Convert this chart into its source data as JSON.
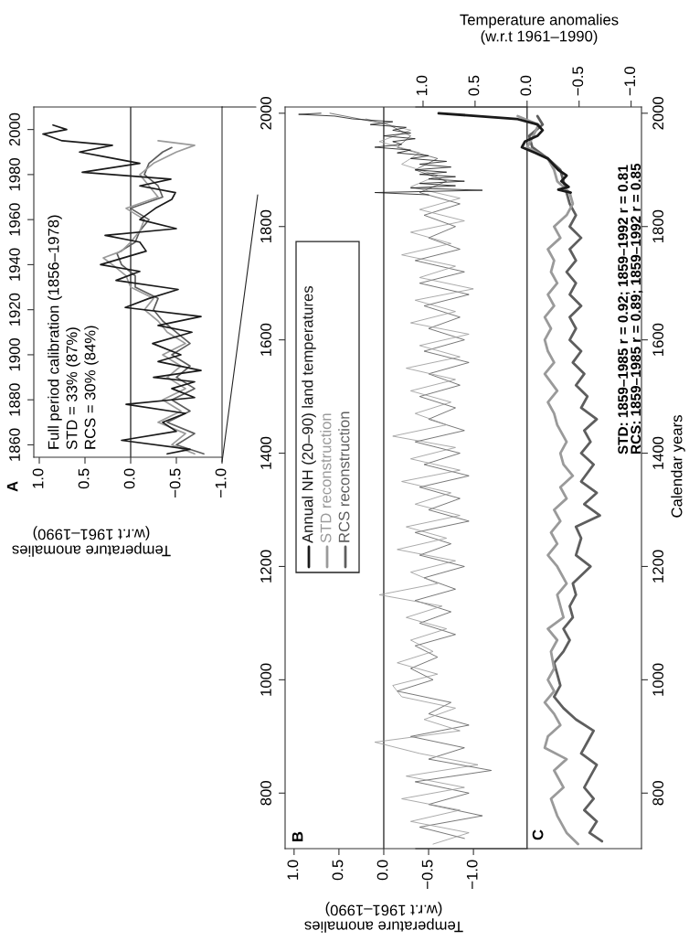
{
  "chart_data": [
    {
      "type": "line",
      "title": "A",
      "xlabel": "Temperature anomalies\n(w.r.t 1961–1990)",
      "orientation": "horizontal",
      "ylim": [
        1854.5,
        2010
      ],
      "yticks": [
        1860,
        1880,
        1900,
        1920,
        1940,
        1960,
        1980,
        2000
      ],
      "xlim": [
        1.06,
        -1.0
      ],
      "xticks": [
        {
          "value": 1.0,
          "label": "1.0"
        },
        {
          "value": 0.5,
          "label": "0.5"
        },
        {
          "value": 0.0,
          "label": "0.0"
        },
        {
          "value": -0.5,
          "label": "−0.5"
        },
        {
          "value": -1.0,
          "label": "−1.0"
        }
      ],
      "ref_lines": [
        {
          "axis": "x",
          "value": 0,
          "color": "#333333"
        }
      ],
      "annotations": [
        "Full period calibration (1856–1978)",
        "STD = 33% (87%)",
        "RCS = 30% (84%)"
      ],
      "series": [
        {
          "color": "#1a1a1a",
          "x": [
            1856,
            1858,
            1862,
            1866,
            1870,
            1874,
            1878,
            1881,
            1885,
            1888,
            1890,
            1893,
            1897,
            1900,
            1905,
            1910,
            1913,
            1917,
            1921,
            1925,
            1929,
            1933,
            1937,
            1940,
            1946,
            1950,
            1953,
            1956,
            1960,
            1965,
            1969,
            1972,
            1975,
            1978,
            1981,
            1985,
            1988,
            1990,
            1993,
            1995,
            1998,
            2000,
            2002
          ],
          "values": [
            -0.4,
            -0.65,
            0.1,
            -0.5,
            -0.35,
            -0.6,
            0.05,
            -0.7,
            -0.45,
            -0.7,
            -0.25,
            -0.77,
            -0.3,
            -0.55,
            -0.24,
            -0.67,
            -0.3,
            -0.77,
            0.06,
            -0.2,
            -0.52,
            0.16,
            -0.1,
            0.33,
            -0.17,
            -0.1,
            0.28,
            -0.5,
            -0.1,
            -0.27,
            -0.45,
            -0.49,
            -0.1,
            -0.44,
            0.53,
            -0.1,
            0.3,
            0.56,
            0.2,
            0.75,
            0.96,
            0.7,
            0.85
          ]
        },
        {
          "color": "#9a9a9a",
          "x": [
            1856,
            1860,
            1865,
            1870,
            1875,
            1880,
            1885,
            1890,
            1895,
            1900,
            1905,
            1910,
            1915,
            1920,
            1925,
            1930,
            1935,
            1940,
            1943,
            1946,
            1950,
            1955,
            1960,
            1965,
            1970,
            1975,
            1980,
            1985,
            1990,
            1993,
            1995
          ],
          "values": [
            -0.7,
            -0.45,
            -0.6,
            -0.3,
            -0.55,
            -0.35,
            -0.6,
            -0.4,
            -0.55,
            -0.35,
            -0.6,
            -0.4,
            -0.3,
            -0.15,
            -0.25,
            0.0,
            0.05,
            0.2,
            0.3,
            0.1,
            0.0,
            -0.1,
            -0.15,
            0.05,
            -0.3,
            -0.2,
            -0.1,
            -0.25,
            -0.5,
            -0.7,
            -0.3
          ]
        },
        {
          "color": "#5e5e5e",
          "x": [
            1856,
            1860,
            1865,
            1870,
            1875,
            1880,
            1885,
            1890,
            1895,
            1900,
            1905,
            1910,
            1915,
            1920,
            1925,
            1930,
            1935,
            1940,
            1945,
            1950,
            1955,
            1960,
            1965,
            1970,
            1975,
            1980,
            1985,
            1990,
            1992
          ],
          "values": [
            -0.8,
            -0.5,
            -0.7,
            -0.4,
            -0.65,
            -0.45,
            -0.7,
            -0.5,
            -0.65,
            -0.45,
            -0.65,
            -0.5,
            -0.35,
            -0.25,
            -0.3,
            -0.05,
            -0.05,
            0.1,
            0.15,
            -0.05,
            -0.1,
            -0.2,
            0.0,
            -0.35,
            -0.3,
            -0.15,
            -0.2,
            -0.35,
            -0.45
          ]
        }
      ]
    },
    {
      "type": "line",
      "title": "B",
      "xlabel": "Temperature anomalies\n(w.r.t 1961–1990)",
      "orientation": "horizontal",
      "ylim": [
        702,
        2011
      ],
      "yticks": [
        800,
        1000,
        1200,
        1400,
        1600,
        1800,
        2000
      ],
      "xlim": [
        1.1,
        -1.6
      ],
      "xticks": [
        {
          "value": 1.0,
          "label": "1.0"
        },
        {
          "value": 0.5,
          "label": "0.5"
        },
        {
          "value": 0.0,
          "label": "0.0"
        },
        {
          "value": -0.5,
          "label": "−0.5"
        },
        {
          "value": -1.0,
          "label": "−1.0"
        }
      ],
      "ref_lines": [
        {
          "axis": "x",
          "value": 0,
          "color": "#333333"
        }
      ],
      "legend": "top",
      "series": [
        {
          "name": "Annual NH (20–90) land temperatures",
          "color": "#1a1a1a",
          "x": [
            1856,
            1860,
            1864,
            1868,
            1872,
            1876,
            1880,
            1884,
            1888,
            1892,
            1896,
            1900,
            1905,
            1910,
            1915,
            1920,
            1925,
            1930,
            1935,
            1940,
            1945,
            1950,
            1955,
            1960,
            1965,
            1970,
            1975,
            1980,
            1985,
            1990,
            1995,
            1998,
            2000
          ],
          "values": [
            -0.5,
            0.1,
            -1.1,
            -0.3,
            -0.8,
            -0.4,
            -0.9,
            -0.5,
            -0.8,
            -0.4,
            -0.7,
            -0.35,
            -0.75,
            -0.4,
            -0.7,
            -0.3,
            -0.5,
            -0.15,
            -0.3,
            0.1,
            -0.2,
            -0.1,
            -0.35,
            0.0,
            -0.3,
            -0.1,
            -0.25,
            0.15,
            -0.1,
            0.35,
            0.55,
            0.95,
            0.7
          ]
        },
        {
          "name": "STD reconstruction",
          "color": "#9a9a9a",
          "x": [
            710,
            730,
            750,
            770,
            790,
            810,
            830,
            850,
            870,
            890,
            910,
            930,
            950,
            970,
            990,
            1010,
            1030,
            1050,
            1070,
            1090,
            1110,
            1130,
            1150,
            1170,
            1190,
            1210,
            1230,
            1250,
            1270,
            1290,
            1310,
            1330,
            1350,
            1370,
            1390,
            1410,
            1430,
            1450,
            1470,
            1490,
            1510,
            1530,
            1550,
            1570,
            1590,
            1610,
            1630,
            1650,
            1670,
            1690,
            1710,
            1730,
            1750,
            1770,
            1790,
            1810,
            1830,
            1850,
            1870,
            1890,
            1910,
            1930,
            1950,
            1970,
            1990
          ],
          "values": [
            -0.55,
            -0.95,
            -0.3,
            -0.85,
            -0.2,
            -0.9,
            -0.25,
            -1.05,
            -0.4,
            0.1,
            -0.85,
            -0.45,
            -0.8,
            -0.2,
            -0.1,
            -0.6,
            -0.15,
            -0.55,
            -0.3,
            -0.7,
            -0.25,
            -0.65,
            0.05,
            -0.6,
            -0.3,
            -0.8,
            -0.15,
            -0.7,
            -0.25,
            -0.85,
            -0.35,
            -0.75,
            -0.2,
            -0.85,
            -0.3,
            -0.8,
            -0.1,
            -0.7,
            -0.35,
            -0.75,
            -0.3,
            -0.8,
            -0.25,
            -0.85,
            -0.4,
            -0.95,
            -0.3,
            -0.8,
            -0.35,
            -1.0,
            -0.4,
            -0.8,
            -0.2,
            -0.75,
            -0.3,
            -0.9,
            -0.4,
            -0.85,
            -0.3,
            -0.6,
            -0.2,
            -0.4,
            0.05,
            -0.3,
            0.2
          ]
        },
        {
          "name": "RCS reconstruction",
          "color": "#5e5e5e",
          "x": [
            720,
            740,
            760,
            780,
            800,
            820,
            840,
            860,
            880,
            900,
            920,
            940,
            960,
            980,
            1000,
            1020,
            1040,
            1060,
            1080,
            1100,
            1120,
            1140,
            1160,
            1180,
            1200,
            1220,
            1240,
            1260,
            1280,
            1300,
            1320,
            1340,
            1360,
            1380,
            1400,
            1420,
            1440,
            1460,
            1480,
            1500,
            1520,
            1540,
            1560,
            1580,
            1600,
            1620,
            1640,
            1660,
            1680,
            1700,
            1720,
            1740,
            1760,
            1780,
            1800,
            1820,
            1840,
            1860,
            1880,
            1900,
            1920,
            1940,
            1960,
            1980,
            2000
          ],
          "values": [
            -0.9,
            -0.4,
            -1.1,
            -0.5,
            -0.95,
            -0.35,
            -1.2,
            -0.5,
            -0.9,
            -0.3,
            -0.95,
            -0.5,
            -0.75,
            -0.15,
            -0.55,
            -0.3,
            -0.6,
            -0.35,
            -0.8,
            -0.4,
            -0.75,
            -0.35,
            -0.8,
            -0.45,
            -0.9,
            -0.4,
            -0.75,
            -0.35,
            -0.95,
            -0.5,
            -0.85,
            -0.4,
            -0.95,
            -0.45,
            -0.85,
            -0.35,
            -0.9,
            -0.5,
            -0.8,
            -0.4,
            -0.85,
            -0.5,
            -0.95,
            -0.45,
            -0.9,
            -0.5,
            -0.85,
            -0.45,
            -0.95,
            -0.4,
            -0.9,
            -0.35,
            -0.85,
            -0.5,
            -0.8,
            -0.45,
            -0.85,
            -0.4,
            -0.7,
            -0.35,
            -0.6,
            -0.15,
            -0.3,
            -0.05,
            0.6
          ]
        }
      ]
    },
    {
      "type": "line",
      "title": "C",
      "ylabel": "Calendar years",
      "xlabel": "Temperature anomalies\n(w.r.t 1961–1990)",
      "orientation": "horizontal",
      "ylim": [
        702,
        2011
      ],
      "yticks": [
        800,
        1000,
        1200,
        1400,
        1600,
        1800,
        2000
      ],
      "xlim": [
        1.07,
        -1.1
      ],
      "xticks": [
        {
          "value": 1.0,
          "label": "1.0"
        },
        {
          "value": 0.5,
          "label": "0.5"
        },
        {
          "value": 0.0,
          "label": "0.0"
        },
        {
          "value": -0.5,
          "label": "−0.5"
        },
        {
          "value": -1.0,
          "label": "−1.0"
        }
      ],
      "ref_lines": [
        {
          "axis": "x",
          "value": 0,
          "color": "#333333"
        }
      ],
      "annotations": [
        "STD: 1859–1985 r = 0.92; 1859–1992 r = 0.81",
        "RCS: 1859–1985 r = 0.89; 1859–1992 r = 0.85"
      ],
      "series": [
        {
          "color": "#1a1a1a",
          "x": [
            1860,
            1865,
            1870,
            1880,
            1890,
            1900,
            1910,
            1920,
            1930,
            1940,
            1950,
            1960,
            1970,
            1980,
            1990,
            2000
          ],
          "values": [
            -0.42,
            -0.3,
            -0.4,
            -0.33,
            -0.38,
            -0.3,
            -0.25,
            -0.2,
            -0.08,
            0.05,
            0.02,
            -0.1,
            -0.15,
            -0.1,
            0.1,
            0.85
          ]
        },
        {
          "color": "#9a9a9a",
          "x": [
            710,
            730,
            760,
            790,
            810,
            840,
            860,
            880,
            900,
            920,
            940,
            960,
            980,
            1000,
            1020,
            1050,
            1070,
            1090,
            1110,
            1130,
            1150,
            1170,
            1200,
            1220,
            1240,
            1260,
            1280,
            1300,
            1320,
            1340,
            1360,
            1380,
            1400,
            1420,
            1450,
            1470,
            1490,
            1510,
            1540,
            1560,
            1580,
            1600,
            1620,
            1640,
            1660,
            1680,
            1700,
            1720,
            1740,
            1760,
            1780,
            1800,
            1820,
            1840,
            1860,
            1880,
            1900,
            1920,
            1940,
            1960,
            1980,
            1995
          ],
          "values": [
            -0.49,
            -0.38,
            -0.29,
            -0.23,
            -0.35,
            -0.26,
            -0.38,
            -0.17,
            -0.2,
            -0.32,
            -0.26,
            -0.17,
            -0.26,
            -0.2,
            -0.26,
            -0.23,
            -0.29,
            -0.2,
            -0.35,
            -0.32,
            -0.29,
            -0.38,
            -0.29,
            -0.2,
            -0.29,
            -0.23,
            -0.32,
            -0.26,
            -0.38,
            -0.32,
            -0.44,
            -0.35,
            -0.32,
            -0.38,
            -0.29,
            -0.26,
            -0.2,
            -0.29,
            -0.17,
            -0.26,
            -0.2,
            -0.17,
            -0.23,
            -0.17,
            -0.26,
            -0.2,
            -0.29,
            -0.23,
            -0.26,
            -0.2,
            -0.32,
            -0.26,
            -0.38,
            -0.44,
            -0.41,
            -0.29,
            -0.26,
            -0.2,
            0.0,
            -0.06,
            -0.11,
            0.09
          ]
        },
        {
          "color": "#5e5e5e",
          "x": [
            715,
            730,
            750,
            770,
            790,
            810,
            830,
            850,
            870,
            890,
            910,
            930,
            950,
            970,
            990,
            1010,
            1030,
            1050,
            1070,
            1090,
            1110,
            1130,
            1150,
            1170,
            1200,
            1220,
            1250,
            1270,
            1290,
            1310,
            1330,
            1350,
            1380,
            1400,
            1420,
            1440,
            1460,
            1480,
            1500,
            1520,
            1540,
            1560,
            1580,
            1600,
            1620,
            1640,
            1660,
            1680,
            1700,
            1720,
            1740,
            1760,
            1780,
            1800,
            1820,
            1840,
            1860,
            1880,
            1900,
            1920,
            1940,
            1960,
            1980,
            1995
          ],
          "values": [
            -0.72,
            -0.6,
            -0.67,
            -0.55,
            -0.64,
            -0.55,
            -0.61,
            -0.67,
            -0.52,
            -0.58,
            -0.64,
            -0.47,
            -0.35,
            -0.26,
            -0.32,
            -0.29,
            -0.26,
            -0.35,
            -0.41,
            -0.35,
            -0.44,
            -0.41,
            -0.47,
            -0.44,
            -0.61,
            -0.47,
            -0.52,
            -0.47,
            -0.7,
            -0.55,
            -0.67,
            -0.52,
            -0.64,
            -0.52,
            -0.61,
            -0.55,
            -0.67,
            -0.52,
            -0.58,
            -0.47,
            -0.55,
            -0.44,
            -0.52,
            -0.41,
            -0.47,
            -0.41,
            -0.52,
            -0.41,
            -0.47,
            -0.38,
            -0.47,
            -0.41,
            -0.52,
            -0.41,
            -0.47,
            -0.41,
            -0.38,
            -0.35,
            -0.32,
            -0.2,
            -0.05,
            -0.02,
            -0.15,
            -0.1
          ]
        }
      ]
    }
  ]
}
